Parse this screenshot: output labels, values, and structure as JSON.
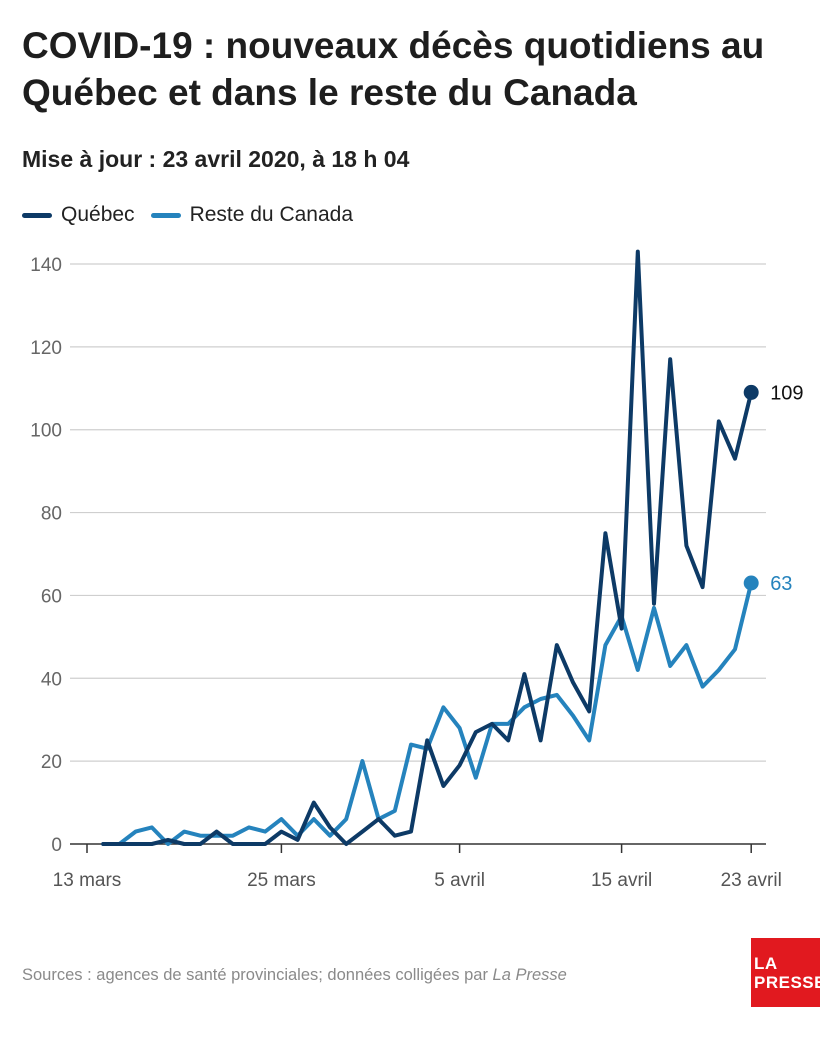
{
  "title": "COVID-19 : nouveaux décès quotidiens au Québec et dans le reste du Canada",
  "subtitle": "Mise à jour : 23 avril 2020, à 18 h 04",
  "source": {
    "prefix": "Sources : agences de santé provinciales; données colligées par ",
    "emphasis": "La Presse"
  },
  "logo": {
    "line1": "LA",
    "line2": "PRESSE"
  },
  "colors": {
    "quebec": "#0d3a66",
    "reste": "#2583bd",
    "grid": "#cfcfcf",
    "axis": "#333333"
  },
  "chart_data": {
    "type": "line",
    "x_start": "2020-03-14",
    "x": [
      "14 mars",
      "15 mars",
      "16 mars",
      "17 mars",
      "18 mars",
      "19 mars",
      "20 mars",
      "21 mars",
      "22 mars",
      "23 mars",
      "24 mars",
      "25 mars",
      "26 mars",
      "27 mars",
      "28 mars",
      "29 mars",
      "30 mars",
      "31 mars",
      "1 avril",
      "2 avril",
      "3 avril",
      "4 avril",
      "5 avril",
      "6 avril",
      "7 avril",
      "8 avril",
      "9 avril",
      "10 avril",
      "11 avril",
      "12 avril",
      "13 avril",
      "14 avril",
      "15 avril",
      "16 avril",
      "17 avril",
      "18 avril",
      "19 avril",
      "20 avril",
      "21 avril",
      "22 avril",
      "23 avril"
    ],
    "series": [
      {
        "name": "Québec",
        "color_key": "quebec",
        "values": [
          0,
          0,
          0,
          0,
          1,
          0,
          0,
          3,
          0,
          0,
          0,
          3,
          1,
          10,
          4,
          0,
          3,
          6,
          2,
          3,
          25,
          14,
          19,
          27,
          29,
          25,
          41,
          25,
          48,
          39,
          32,
          75,
          52,
          143,
          58,
          117,
          72,
          62,
          102,
          93,
          109
        ]
      },
      {
        "name": "Reste du Canada",
        "color_key": "reste",
        "values": [
          0,
          0,
          3,
          4,
          0,
          3,
          2,
          2,
          2,
          4,
          3,
          6,
          2,
          6,
          2,
          6,
          20,
          6,
          8,
          24,
          23,
          33,
          28,
          16,
          29,
          29,
          33,
          35,
          36,
          31,
          25,
          48,
          55,
          42,
          57,
          43,
          48,
          38,
          42,
          47,
          63
        ]
      }
    ],
    "end_labels": [
      "109",
      "63"
    ],
    "xticks": [
      {
        "date": "2020-03-13",
        "label": "13 mars"
      },
      {
        "date": "2020-03-25",
        "label": "25 mars"
      },
      {
        "date": "2020-04-05",
        "label": "5 avril"
      },
      {
        "date": "2020-04-15",
        "label": "15 avril"
      },
      {
        "date": "2020-04-23",
        "label": "23 avril"
      }
    ],
    "yticks": [
      0,
      20,
      40,
      60,
      80,
      100,
      120,
      140
    ],
    "ylim": [
      0,
      140
    ],
    "legend_position": "top-left",
    "grid": true
  }
}
